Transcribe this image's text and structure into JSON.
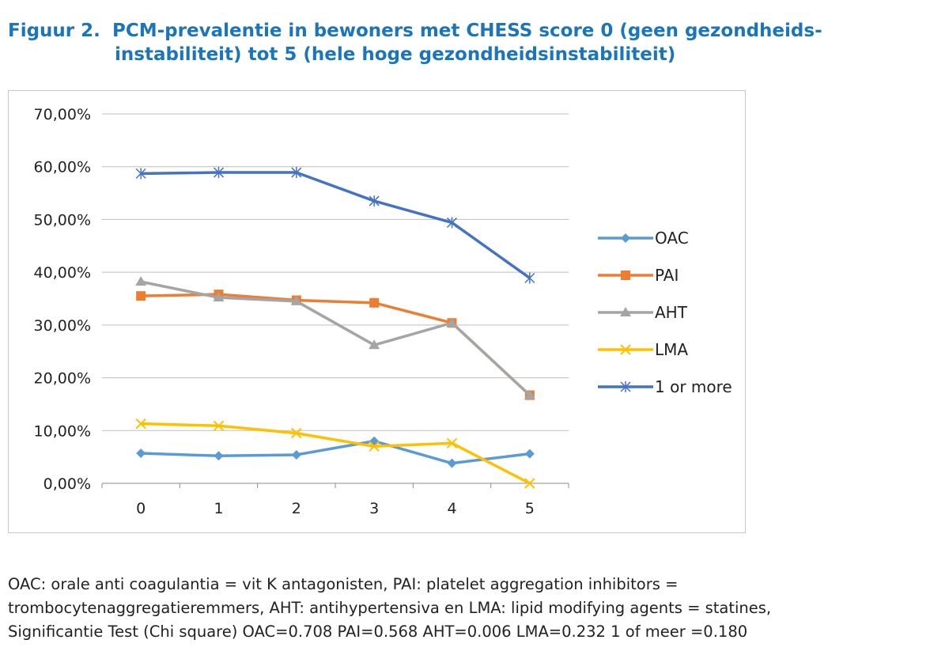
{
  "figure": {
    "number": "Figuur 2.",
    "title_line1": "PCM-prevalentie in bewoners met CHESS score 0 (geen gezondheids-",
    "title_line2": "instabiliteit) tot 5 (hele hoge gezondheidsinstabiliteit)"
  },
  "chart_data": {
    "type": "line",
    "title": "",
    "xlabel": "",
    "ylabel": "",
    "categories": [
      "0",
      "1",
      "2",
      "3",
      "4",
      "5"
    ],
    "ylim": [
      0,
      70
    ],
    "yticks": [
      0,
      10,
      20,
      30,
      40,
      50,
      60,
      70
    ],
    "ytick_labels": [
      "0,00%",
      "10,00%",
      "20,00%",
      "30,00%",
      "40,00%",
      "50,00%",
      "60,00%",
      "70,00%"
    ],
    "grid": true,
    "legend_position": "right",
    "series": [
      {
        "name": "OAC",
        "color": "#5b9bd5",
        "marker": "diamond",
        "values": [
          5.7,
          5.2,
          5.4,
          8.0,
          3.8,
          5.6
        ]
      },
      {
        "name": "PAI",
        "color": "#ed7d31",
        "marker": "square",
        "values": [
          35.5,
          35.8,
          34.7,
          34.2,
          30.4,
          16.7
        ]
      },
      {
        "name": "AHT",
        "color": "#a5a5a5",
        "marker": "triangle",
        "values": [
          38.2,
          35.2,
          34.5,
          26.2,
          30.4,
          16.7
        ]
      },
      {
        "name": "LMA",
        "color": "#ffc000",
        "marker": "x",
        "values": [
          11.3,
          10.9,
          9.5,
          7.0,
          7.6,
          0.0
        ]
      },
      {
        "name": "1 or more",
        "color": "#4472c4",
        "marker": "star",
        "values": [
          58.7,
          58.9,
          58.9,
          53.5,
          49.4,
          38.9
        ]
      }
    ]
  },
  "caption": {
    "line1": "OAC: orale anti coagulantia = vit K antagonisten, PAI: platelet aggregation inhibitors =",
    "line2": "trombocytenaggregatieremmers, AHT: antihypertensiva en LMA: lipid modifying agents = statines,",
    "line3": "Significantie Test (Chi square) OAC=0.708  PAI=0.568  AHT=0.006  LMA=0.232  1 of meer =0.180"
  }
}
